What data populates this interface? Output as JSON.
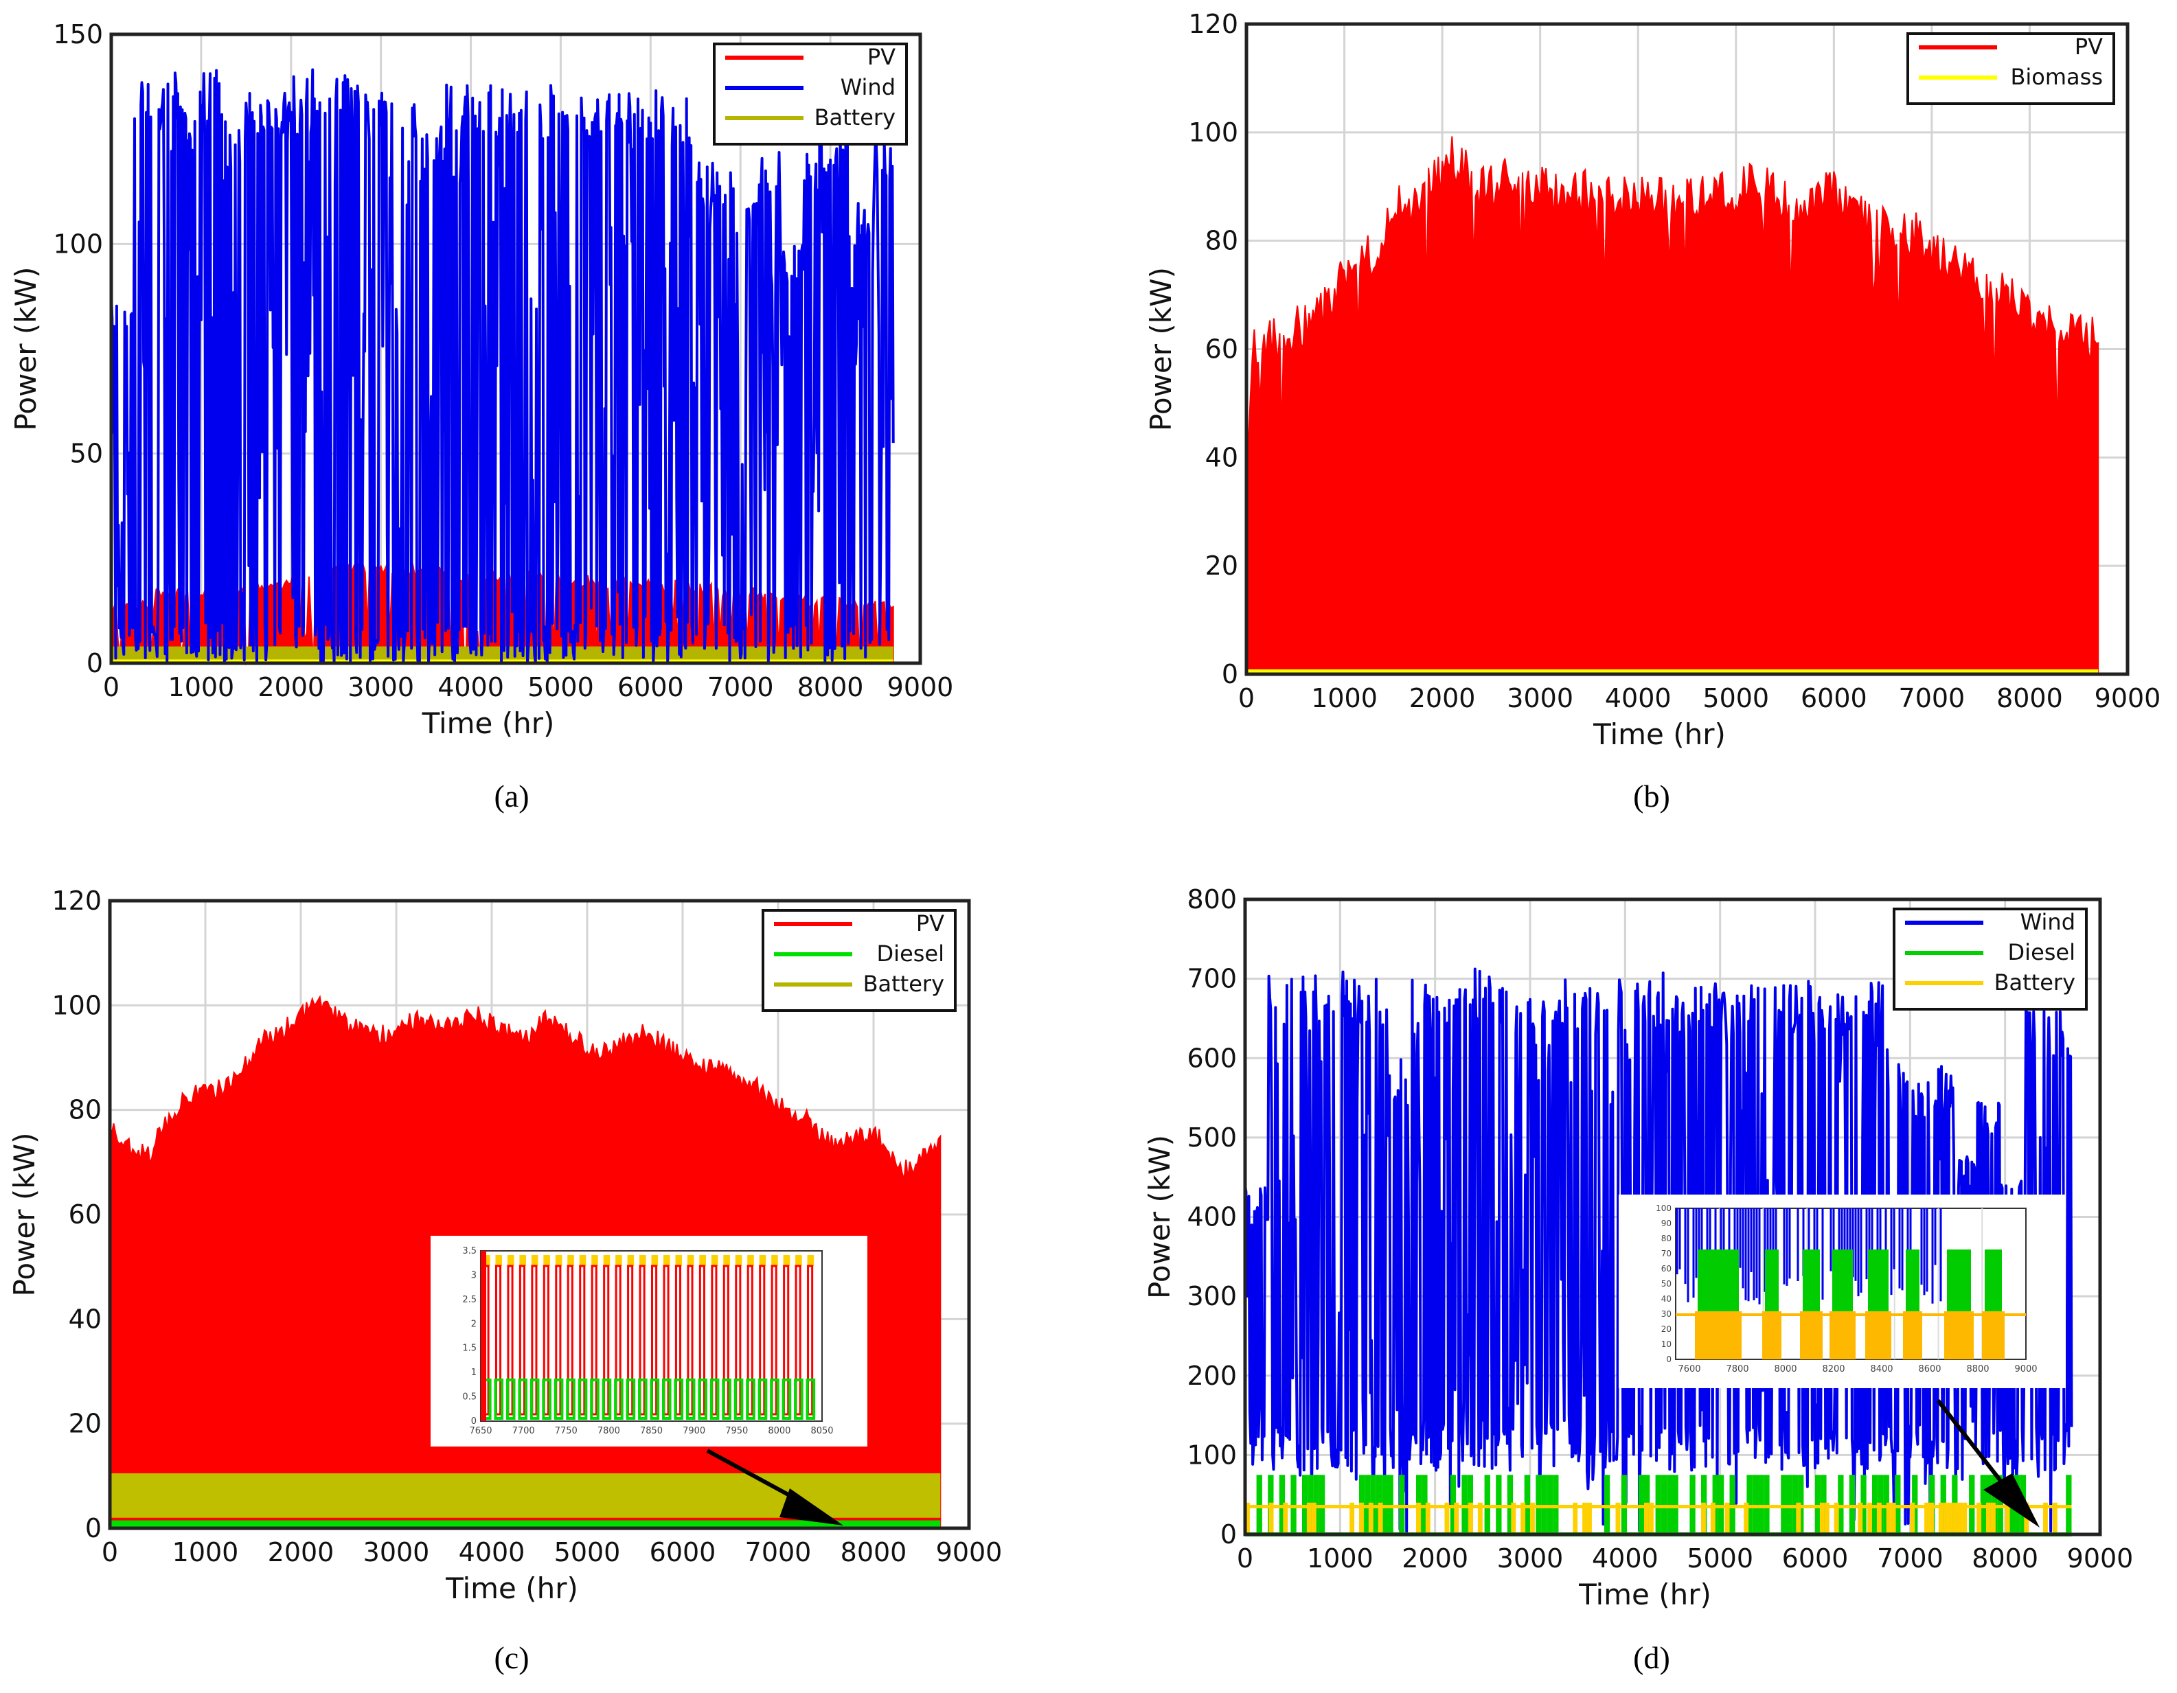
{
  "chart_data": [
    {
      "panel": "(a)",
      "type": "area",
      "xlabel": "Time (hr)",
      "ylabel": "Power (kW)",
      "xlim": [
        0,
        9000
      ],
      "ylim": [
        0,
        150
      ],
      "xticks": [
        0,
        1000,
        2000,
        3000,
        4000,
        5000,
        6000,
        7000,
        8000,
        9000
      ],
      "yticks": [
        0,
        50,
        100,
        150
      ],
      "grid": true,
      "legend_position": "top-right",
      "legend": [
        {
          "name": "PV",
          "color": "#ff0000"
        },
        {
          "name": "Wind",
          "color": "#0000ee"
        },
        {
          "name": "Battery",
          "color": "#b5b500"
        }
      ],
      "x_max": 8700,
      "wind_peaks": [
        88,
        140,
        141,
        138,
        142,
        130,
        137,
        137,
        140,
        142,
        141,
        138,
        136,
        135,
        130,
        139,
        138,
        137,
        137,
        138,
        138,
        137,
        136,
        136,
        137,
        136,
        120,
        118,
        115,
        122,
        100,
        125,
        125,
        110,
        126
      ],
      "pv_level": [
        15,
        18,
        18,
        20,
        22,
        24,
        24,
        23,
        22,
        22,
        21,
        21,
        20,
        19,
        18,
        17,
        16,
        15
      ],
      "battery_level": 4,
      "extra_line": {
        "name": "",
        "color": "#ffff00",
        "value": 0
      }
    },
    {
      "panel": "(b)",
      "type": "area",
      "xlabel": "Time (hr)",
      "ylabel": "Power (kW)",
      "xlim": [
        0,
        9000
      ],
      "ylim": [
        0,
        120
      ],
      "xticks": [
        0,
        1000,
        2000,
        3000,
        4000,
        5000,
        6000,
        7000,
        8000,
        9000
      ],
      "yticks": [
        0,
        20,
        40,
        60,
        80,
        100,
        120
      ],
      "grid": true,
      "legend_position": "top-right",
      "legend": [
        {
          "name": "PV",
          "color": "#ff0000"
        },
        {
          "name": "Biomass",
          "color": "#ffff00"
        }
      ],
      "x_max": 8700,
      "pv_envelope": [
        [
          0,
          40
        ],
        [
          60,
          66
        ],
        [
          300,
          66
        ],
        [
          500,
          68
        ],
        [
          800,
          72
        ],
        [
          1000,
          79
        ],
        [
          1300,
          82
        ],
        [
          1500,
          90
        ],
        [
          1800,
          92
        ],
        [
          2100,
          100
        ],
        [
          2400,
          94
        ],
        [
          2800,
          96
        ],
        [
          3200,
          92
        ],
        [
          3600,
          94
        ],
        [
          4000,
          92
        ],
        [
          4400,
          92
        ],
        [
          4800,
          93
        ],
        [
          5200,
          95
        ],
        [
          5600,
          91
        ],
        [
          6000,
          93
        ],
        [
          6400,
          88
        ],
        [
          6800,
          86
        ],
        [
          7200,
          80
        ],
        [
          7600,
          76
        ],
        [
          8000,
          72
        ],
        [
          8400,
          67
        ],
        [
          8700,
          66
        ]
      ],
      "biomass_level": 0.5
    },
    {
      "panel": "(c)",
      "type": "area",
      "xlabel": "Time (hr)",
      "ylabel": "Power (kW)",
      "xlim": [
        0,
        9000
      ],
      "ylim": [
        0,
        120
      ],
      "xticks": [
        0,
        1000,
        2000,
        3000,
        4000,
        5000,
        6000,
        7000,
        8000,
        9000
      ],
      "yticks": [
        0,
        20,
        40,
        60,
        80,
        100,
        120
      ],
      "grid": true,
      "legend_position": "top-right",
      "legend": [
        {
          "name": "PV",
          "color": "#ff0000"
        },
        {
          "name": "Diesel",
          "color": "#00e000"
        },
        {
          "name": "Battery",
          "color": "#b5b500"
        }
      ],
      "x_max": 8700,
      "pv_envelope": [
        [
          0,
          78
        ],
        [
          200,
          75
        ],
        [
          400,
          73
        ],
        [
          600,
          80
        ],
        [
          800,
          85
        ],
        [
          1200,
          86
        ],
        [
          1400,
          90
        ],
        [
          1600,
          96
        ],
        [
          1800,
          97
        ],
        [
          2000,
          100
        ],
        [
          2200,
          103
        ],
        [
          2500,
          98
        ],
        [
          2800,
          96
        ],
        [
          3200,
          99
        ],
        [
          3600,
          98
        ],
        [
          3800,
          101
        ],
        [
          4100,
          97
        ],
        [
          4400,
          96
        ],
        [
          4600,
          100
        ],
        [
          4900,
          95
        ],
        [
          5200,
          93
        ],
        [
          5600,
          97
        ],
        [
          6000,
          92
        ],
        [
          6300,
          90
        ],
        [
          6600,
          88
        ],
        [
          6800,
          86
        ],
        [
          7000,
          83
        ],
        [
          7300,
          80
        ],
        [
          7600,
          75
        ],
        [
          8000,
          78
        ],
        [
          8300,
          70
        ],
        [
          8600,
          74
        ],
        [
          8700,
          77
        ]
      ],
      "battery_band": [
        2,
        10.5
      ],
      "diesel_level": 1.5,
      "inset": {
        "xticks": [
          "7650",
          "7700",
          "7750",
          "7800",
          "7850",
          "7900",
          "7950",
          "8000",
          "8050"
        ],
        "yticks": [
          "0",
          "0.5",
          "1",
          "1.5",
          "2",
          "2.5",
          "3",
          "3.5"
        ]
      }
    },
    {
      "panel": "(d)",
      "type": "area",
      "xlabel": "Time (hr)",
      "ylabel": "Power (kW)",
      "xlim": [
        0,
        9000
      ],
      "ylim": [
        0,
        800
      ],
      "xticks": [
        0,
        1000,
        2000,
        3000,
        4000,
        5000,
        6000,
        7000,
        8000,
        9000
      ],
      "yticks": [
        0,
        100,
        200,
        300,
        400,
        500,
        600,
        700,
        800
      ],
      "grid": true,
      "legend_position": "top-right",
      "legend": [
        {
          "name": "Wind",
          "color": "#0000ee"
        },
        {
          "name": "Diesel",
          "color": "#00d000"
        },
        {
          "name": "Battery",
          "color": "#ffd000"
        }
      ],
      "x_max": 8700,
      "wind_peaks": [
        440,
        710,
        720,
        690,
        710,
        700,
        600,
        700,
        700,
        720,
        710,
        690,
        680,
        700,
        690,
        700,
        700,
        710,
        700,
        700,
        690,
        700,
        700,
        700,
        690,
        690,
        700,
        620,
        580,
        590,
        480,
        560,
        450,
        680,
        660
      ],
      "diesel_level": 75,
      "battery_level": 35,
      "inset": {
        "xticks": [
          "7600",
          "7800",
          "8000",
          "8200",
          "8400",
          "8600",
          "8800",
          "9000"
        ],
        "yticks": [
          "100",
          "90",
          "80",
          "70",
          "60",
          "50",
          "40",
          "30",
          "20",
          "10",
          "0"
        ]
      }
    }
  ],
  "captions": [
    "(a)",
    "(b)",
    "(c)",
    "(d)"
  ]
}
